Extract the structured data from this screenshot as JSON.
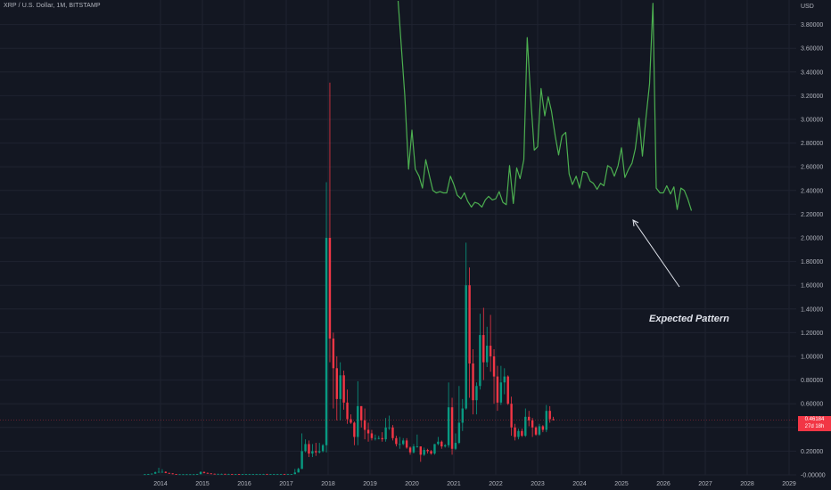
{
  "header": {
    "symbol_title": "XRP / U.S. Dollar, 1M, BITSTAMP"
  },
  "annotation": {
    "text": "Expected Pattern"
  },
  "price_badge": {
    "price": "0.46184",
    "countdown": "27d 18h"
  },
  "colors": {
    "background": "#131722",
    "up": "#089981",
    "down": "#f23645",
    "projection": "#4caf50",
    "grid": "#1f2330",
    "axis_text": "#b2b5be",
    "arrow": "#e0e3eb"
  },
  "chart_data": {
    "type": "candlestick",
    "interval": "1M",
    "currency_label": "USD",
    "x_range": [
      2013.0,
      2029.2
    ],
    "ylim": [
      -0.02,
      4.0
    ],
    "y_ticks": [
      "-0.00000",
      "0.20000",
      "0.40000",
      "0.60000",
      "0.80000",
      "1.00000",
      "1.20000",
      "1.40000",
      "1.60000",
      "1.80000",
      "2.00000",
      "2.20000",
      "2.40000",
      "2.60000",
      "2.80000",
      "3.00000",
      "3.20000",
      "3.40000",
      "3.60000",
      "3.80000"
    ],
    "y_tick_values": [
      0,
      0.2,
      0.4,
      0.6,
      0.8,
      1.0,
      1.2,
      1.4,
      1.6,
      1.8,
      2.0,
      2.2,
      2.4,
      2.6,
      2.8,
      3.0,
      3.2,
      3.4,
      3.6,
      3.8
    ],
    "x_ticks": [
      "2014",
      "2015",
      "2016",
      "2017",
      "2018",
      "2019",
      "2020",
      "2021",
      "2022",
      "2023",
      "2024",
      "2025",
      "2026",
      "2027",
      "2028",
      "2029"
    ],
    "x_tick_values": [
      2014,
      2015,
      2016,
      2017,
      2018,
      2019,
      2020,
      2021,
      2022,
      2023,
      2024,
      2025,
      2026,
      2027,
      2028,
      2029
    ],
    "grid": true,
    "candles": [
      {
        "t": "2013-08",
        "o": 0.005,
        "h": 0.007,
        "l": 0.004,
        "c": 0.005
      },
      {
        "t": "2013-09",
        "o": 0.005,
        "h": 0.008,
        "l": 0.004,
        "c": 0.006
      },
      {
        "t": "2013-10",
        "o": 0.006,
        "h": 0.012,
        "l": 0.005,
        "c": 0.01
      },
      {
        "t": "2013-11",
        "o": 0.01,
        "h": 0.028,
        "l": 0.008,
        "c": 0.022
      },
      {
        "t": "2013-12",
        "o": 0.022,
        "h": 0.06,
        "l": 0.018,
        "c": 0.025
      },
      {
        "t": "2014-01",
        "o": 0.025,
        "h": 0.048,
        "l": 0.02,
        "c": 0.025
      },
      {
        "t": "2014-02",
        "o": 0.025,
        "h": 0.03,
        "l": 0.014,
        "c": 0.016
      },
      {
        "t": "2014-03",
        "o": 0.016,
        "h": 0.018,
        "l": 0.01,
        "c": 0.012
      },
      {
        "t": "2014-04",
        "o": 0.012,
        "h": 0.014,
        "l": 0.005,
        "c": 0.006
      },
      {
        "t": "2014-05",
        "o": 0.006,
        "h": 0.007,
        "l": 0.004,
        "c": 0.005
      },
      {
        "t": "2014-06",
        "o": 0.005,
        "h": 0.006,
        "l": 0.004,
        "c": 0.005
      },
      {
        "t": "2014-07",
        "o": 0.005,
        "h": 0.006,
        "l": 0.004,
        "c": 0.005
      },
      {
        "t": "2014-08",
        "o": 0.005,
        "h": 0.006,
        "l": 0.004,
        "c": 0.005
      },
      {
        "t": "2014-09",
        "o": 0.005,
        "h": 0.006,
        "l": 0.004,
        "c": 0.005
      },
      {
        "t": "2014-10",
        "o": 0.005,
        "h": 0.006,
        "l": 0.004,
        "c": 0.005
      },
      {
        "t": "2014-11",
        "o": 0.005,
        "h": 0.008,
        "l": 0.004,
        "c": 0.006
      },
      {
        "t": "2014-12",
        "o": 0.006,
        "h": 0.03,
        "l": 0.005,
        "c": 0.024
      },
      {
        "t": "2015-01",
        "o": 0.024,
        "h": 0.028,
        "l": 0.012,
        "c": 0.016
      },
      {
        "t": "2015-02",
        "o": 0.016,
        "h": 0.02,
        "l": 0.01,
        "c": 0.012
      },
      {
        "t": "2015-03",
        "o": 0.012,
        "h": 0.014,
        "l": 0.008,
        "c": 0.009
      },
      {
        "t": "2015-04",
        "o": 0.009,
        "h": 0.01,
        "l": 0.006,
        "c": 0.008
      },
      {
        "t": "2015-05",
        "o": 0.008,
        "h": 0.01,
        "l": 0.006,
        "c": 0.008
      },
      {
        "t": "2015-06",
        "o": 0.008,
        "h": 0.01,
        "l": 0.006,
        "c": 0.008
      },
      {
        "t": "2015-07",
        "o": 0.008,
        "h": 0.009,
        "l": 0.006,
        "c": 0.007
      },
      {
        "t": "2015-08",
        "o": 0.007,
        "h": 0.009,
        "l": 0.006,
        "c": 0.007
      },
      {
        "t": "2015-09",
        "o": 0.007,
        "h": 0.008,
        "l": 0.005,
        "c": 0.006
      },
      {
        "t": "2015-10",
        "o": 0.006,
        "h": 0.007,
        "l": 0.005,
        "c": 0.006
      },
      {
        "t": "2015-11",
        "o": 0.006,
        "h": 0.007,
        "l": 0.004,
        "c": 0.005
      },
      {
        "t": "2015-12",
        "o": 0.005,
        "h": 0.007,
        "l": 0.004,
        "c": 0.006
      },
      {
        "t": "2016-01",
        "o": 0.006,
        "h": 0.007,
        "l": 0.005,
        "c": 0.006
      },
      {
        "t": "2016-02",
        "o": 0.006,
        "h": 0.008,
        "l": 0.005,
        "c": 0.007
      },
      {
        "t": "2016-03",
        "o": 0.007,
        "h": 0.008,
        "l": 0.006,
        "c": 0.007
      },
      {
        "t": "2016-04",
        "o": 0.007,
        "h": 0.008,
        "l": 0.006,
        "c": 0.007
      },
      {
        "t": "2016-05",
        "o": 0.007,
        "h": 0.008,
        "l": 0.006,
        "c": 0.007
      },
      {
        "t": "2016-06",
        "o": 0.007,
        "h": 0.008,
        "l": 0.006,
        "c": 0.007
      },
      {
        "t": "2016-07",
        "o": 0.007,
        "h": 0.008,
        "l": 0.006,
        "c": 0.006
      },
      {
        "t": "2016-08",
        "o": 0.006,
        "h": 0.007,
        "l": 0.005,
        "c": 0.006
      },
      {
        "t": "2016-09",
        "o": 0.006,
        "h": 0.008,
        "l": 0.005,
        "c": 0.007
      },
      {
        "t": "2016-10",
        "o": 0.007,
        "h": 0.008,
        "l": 0.006,
        "c": 0.007
      },
      {
        "t": "2016-11",
        "o": 0.007,
        "h": 0.008,
        "l": 0.006,
        "c": 0.007
      },
      {
        "t": "2016-12",
        "o": 0.007,
        "h": 0.008,
        "l": 0.006,
        "c": 0.006
      },
      {
        "t": "2017-01",
        "o": 0.006,
        "h": 0.008,
        "l": 0.006,
        "c": 0.006
      },
      {
        "t": "2017-02",
        "o": 0.006,
        "h": 0.007,
        "l": 0.005,
        "c": 0.006
      },
      {
        "t": "2017-03",
        "o": 0.006,
        "h": 0.05,
        "l": 0.006,
        "c": 0.02
      },
      {
        "t": "2017-04",
        "o": 0.02,
        "h": 0.06,
        "l": 0.02,
        "c": 0.05
      },
      {
        "t": "2017-05",
        "o": 0.05,
        "h": 0.35,
        "l": 0.05,
        "c": 0.2
      },
      {
        "t": "2017-06",
        "o": 0.2,
        "h": 0.3,
        "l": 0.19,
        "c": 0.26
      },
      {
        "t": "2017-07",
        "o": 0.26,
        "h": 0.29,
        "l": 0.15,
        "c": 0.18
      },
      {
        "t": "2017-08",
        "o": 0.18,
        "h": 0.26,
        "l": 0.15,
        "c": 0.2
      },
      {
        "t": "2017-09",
        "o": 0.2,
        "h": 0.27,
        "l": 0.16,
        "c": 0.19
      },
      {
        "t": "2017-10",
        "o": 0.19,
        "h": 0.27,
        "l": 0.18,
        "c": 0.2
      },
      {
        "t": "2017-11",
        "o": 0.2,
        "h": 0.26,
        "l": 0.19,
        "c": 0.25
      },
      {
        "t": "2017-12",
        "o": 0.25,
        "h": 2.47,
        "l": 0.19,
        "c": 2.0
      },
      {
        "t": "2018-01",
        "o": 2.0,
        "h": 3.31,
        "l": 0.95,
        "c": 1.15
      },
      {
        "t": "2018-02",
        "o": 1.15,
        "h": 1.2,
        "l": 0.56,
        "c": 0.9
      },
      {
        "t": "2018-03",
        "o": 0.9,
        "h": 1.0,
        "l": 0.46,
        "c": 0.64
      },
      {
        "t": "2018-04",
        "o": 0.64,
        "h": 0.95,
        "l": 0.46,
        "c": 0.84
      },
      {
        "t": "2018-05",
        "o": 0.84,
        "h": 0.88,
        "l": 0.55,
        "c": 0.61
      },
      {
        "t": "2018-06",
        "o": 0.61,
        "h": 0.72,
        "l": 0.43,
        "c": 0.47
      },
      {
        "t": "2018-07",
        "o": 0.47,
        "h": 0.51,
        "l": 0.43,
        "c": 0.44
      },
      {
        "t": "2018-08",
        "o": 0.44,
        "h": 0.45,
        "l": 0.25,
        "c": 0.32
      },
      {
        "t": "2018-09",
        "o": 0.32,
        "h": 0.79,
        "l": 0.25,
        "c": 0.58
      },
      {
        "t": "2018-10",
        "o": 0.58,
        "h": 0.58,
        "l": 0.4,
        "c": 0.46
      },
      {
        "t": "2018-11",
        "o": 0.46,
        "h": 0.56,
        "l": 0.3,
        "c": 0.38
      },
      {
        "t": "2018-12",
        "o": 0.38,
        "h": 0.44,
        "l": 0.28,
        "c": 0.35
      },
      {
        "t": "2019-01",
        "o": 0.35,
        "h": 0.38,
        "l": 0.29,
        "c": 0.31
      },
      {
        "t": "2019-02",
        "o": 0.31,
        "h": 0.34,
        "l": 0.29,
        "c": 0.31
      },
      {
        "t": "2019-03",
        "o": 0.31,
        "h": 0.33,
        "l": 0.3,
        "c": 0.31
      },
      {
        "t": "2019-04",
        "o": 0.31,
        "h": 0.36,
        "l": 0.28,
        "c": 0.3
      },
      {
        "t": "2019-05",
        "o": 0.3,
        "h": 0.48,
        "l": 0.28,
        "c": 0.4
      },
      {
        "t": "2019-06",
        "o": 0.4,
        "h": 0.5,
        "l": 0.38,
        "c": 0.4
      },
      {
        "t": "2019-07",
        "o": 0.4,
        "h": 0.42,
        "l": 0.29,
        "c": 0.31
      },
      {
        "t": "2019-08",
        "o": 0.31,
        "h": 0.33,
        "l": 0.24,
        "c": 0.26
      },
      {
        "t": "2019-09",
        "o": 0.26,
        "h": 0.32,
        "l": 0.22,
        "c": 0.26
      },
      {
        "t": "2019-10",
        "o": 0.26,
        "h": 0.31,
        "l": 0.25,
        "c": 0.29
      },
      {
        "t": "2019-11",
        "o": 0.29,
        "h": 0.31,
        "l": 0.22,
        "c": 0.23
      },
      {
        "t": "2019-12",
        "o": 0.23,
        "h": 0.24,
        "l": 0.17,
        "c": 0.19
      },
      {
        "t": "2020-01",
        "o": 0.19,
        "h": 0.26,
        "l": 0.18,
        "c": 0.24
      },
      {
        "t": "2020-02",
        "o": 0.24,
        "h": 0.34,
        "l": 0.23,
        "c": 0.24
      },
      {
        "t": "2020-03",
        "o": 0.24,
        "h": 0.24,
        "l": 0.11,
        "c": 0.17
      },
      {
        "t": "2020-04",
        "o": 0.17,
        "h": 0.23,
        "l": 0.16,
        "c": 0.21
      },
      {
        "t": "2020-05",
        "o": 0.21,
        "h": 0.22,
        "l": 0.18,
        "c": 0.2
      },
      {
        "t": "2020-06",
        "o": 0.2,
        "h": 0.21,
        "l": 0.17,
        "c": 0.18
      },
      {
        "t": "2020-07",
        "o": 0.18,
        "h": 0.26,
        "l": 0.17,
        "c": 0.26
      },
      {
        "t": "2020-08",
        "o": 0.26,
        "h": 0.32,
        "l": 0.25,
        "c": 0.28
      },
      {
        "t": "2020-09",
        "o": 0.28,
        "h": 0.29,
        "l": 0.22,
        "c": 0.24
      },
      {
        "t": "2020-10",
        "o": 0.24,
        "h": 0.26,
        "l": 0.23,
        "c": 0.25
      },
      {
        "t": "2020-11",
        "o": 0.25,
        "h": 0.78,
        "l": 0.23,
        "c": 0.57
      },
      {
        "t": "2020-12",
        "o": 0.57,
        "h": 0.65,
        "l": 0.17,
        "c": 0.22
      },
      {
        "t": "2021-01",
        "o": 0.22,
        "h": 0.35,
        "l": 0.21,
        "c": 0.27
      },
      {
        "t": "2021-02",
        "o": 0.27,
        "h": 0.75,
        "l": 0.26,
        "c": 0.44
      },
      {
        "t": "2021-03",
        "o": 0.44,
        "h": 0.64,
        "l": 0.37,
        "c": 0.56
      },
      {
        "t": "2021-04",
        "o": 0.56,
        "h": 1.96,
        "l": 0.55,
        "c": 1.6
      },
      {
        "t": "2021-05",
        "o": 1.6,
        "h": 1.75,
        "l": 0.65,
        "c": 0.94
      },
      {
        "t": "2021-06",
        "o": 0.94,
        "h": 1.06,
        "l": 0.51,
        "c": 0.63
      },
      {
        "t": "2021-07",
        "o": 0.63,
        "h": 0.78,
        "l": 0.51,
        "c": 0.75
      },
      {
        "t": "2021-08",
        "o": 0.75,
        "h": 1.36,
        "l": 0.72,
        "c": 1.18
      },
      {
        "t": "2021-09",
        "o": 1.18,
        "h": 1.41,
        "l": 0.8,
        "c": 0.95
      },
      {
        "t": "2021-10",
        "o": 0.95,
        "h": 1.25,
        "l": 0.91,
        "c": 1.09
      },
      {
        "t": "2021-11",
        "o": 1.09,
        "h": 1.35,
        "l": 0.87,
        "c": 1.0
      },
      {
        "t": "2021-12",
        "o": 1.0,
        "h": 1.06,
        "l": 0.6,
        "c": 0.83
      },
      {
        "t": "2022-01",
        "o": 0.83,
        "h": 0.92,
        "l": 0.54,
        "c": 0.61
      },
      {
        "t": "2022-02",
        "o": 0.61,
        "h": 0.92,
        "l": 0.59,
        "c": 0.78
      },
      {
        "t": "2022-03",
        "o": 0.78,
        "h": 0.9,
        "l": 0.68,
        "c": 0.83
      },
      {
        "t": "2022-04",
        "o": 0.83,
        "h": 0.84,
        "l": 0.59,
        "c": 0.6
      },
      {
        "t": "2022-05",
        "o": 0.6,
        "h": 0.66,
        "l": 0.33,
        "c": 0.4
      },
      {
        "t": "2022-06",
        "o": 0.4,
        "h": 0.43,
        "l": 0.29,
        "c": 0.32
      },
      {
        "t": "2022-07",
        "o": 0.32,
        "h": 0.39,
        "l": 0.3,
        "c": 0.37
      },
      {
        "t": "2022-08",
        "o": 0.37,
        "h": 0.39,
        "l": 0.32,
        "c": 0.33
      },
      {
        "t": "2022-09",
        "o": 0.33,
        "h": 0.56,
        "l": 0.32,
        "c": 0.49
      },
      {
        "t": "2022-10",
        "o": 0.49,
        "h": 0.54,
        "l": 0.41,
        "c": 0.46
      },
      {
        "t": "2022-11",
        "o": 0.46,
        "h": 0.48,
        "l": 0.32,
        "c": 0.4
      },
      {
        "t": "2022-12",
        "o": 0.4,
        "h": 0.41,
        "l": 0.33,
        "c": 0.34
      },
      {
        "t": "2023-01",
        "o": 0.34,
        "h": 0.43,
        "l": 0.33,
        "c": 0.41
      },
      {
        "t": "2023-02",
        "o": 0.41,
        "h": 0.42,
        "l": 0.36,
        "c": 0.38
      },
      {
        "t": "2023-03",
        "o": 0.38,
        "h": 0.59,
        "l": 0.36,
        "c": 0.54
      },
      {
        "t": "2023-04",
        "o": 0.54,
        "h": 0.58,
        "l": 0.44,
        "c": 0.47
      },
      {
        "t": "2023-05",
        "o": 0.47,
        "h": 0.49,
        "l": 0.46,
        "c": 0.462
      }
    ],
    "projection_line": {
      "x": [
        2019.67,
        2019.83,
        2019.92,
        2020.0,
        2020.08,
        2020.17,
        2020.25,
        2020.33,
        2020.42,
        2020.5,
        2020.58,
        2020.67,
        2020.75,
        2020.83,
        2020.92,
        2021.0,
        2021.08,
        2021.17,
        2021.25,
        2021.33,
        2021.42,
        2021.5,
        2021.58,
        2021.67,
        2021.75,
        2021.83,
        2021.92,
        2022.0,
        2022.08,
        2022.17,
        2022.25,
        2022.33,
        2022.42,
        2022.5,
        2022.58,
        2022.67,
        2022.75,
        2022.83,
        2022.92,
        2023.0,
        2023.08,
        2023.17,
        2023.25,
        2023.33,
        2023.42,
        2023.5,
        2023.58,
        2023.67,
        2023.75,
        2023.83,
        2023.92,
        2024.0,
        2024.08,
        2024.17,
        2024.25,
        2024.33,
        2024.42,
        2024.5,
        2024.58,
        2024.67,
        2024.75,
        2024.83,
        2024.92,
        2025.0,
        2025.08,
        2025.17,
        2025.25,
        2025.33,
        2025.42,
        2025.5,
        2025.58,
        2025.67,
        2025.75,
        2025.83,
        2025.92,
        2026.0,
        2026.08,
        2026.17,
        2026.25,
        2026.33,
        2026.42,
        2026.5,
        2026.58,
        2026.67
      ],
      "y": [
        4.0,
        3.2,
        2.58,
        2.91,
        2.58,
        2.52,
        2.42,
        2.66,
        2.52,
        2.4,
        2.38,
        2.39,
        2.38,
        2.38,
        2.52,
        2.45,
        2.36,
        2.33,
        2.38,
        2.31,
        2.26,
        2.3,
        2.29,
        2.26,
        2.32,
        2.35,
        2.32,
        2.33,
        2.39,
        2.3,
        2.28,
        2.61,
        2.29,
        2.59,
        2.5,
        2.66,
        3.69,
        3.21,
        2.74,
        2.77,
        3.26,
        3.03,
        3.19,
        3.07,
        2.86,
        2.7,
        2.86,
        2.89,
        2.54,
        2.45,
        2.52,
        2.42,
        2.56,
        2.55,
        2.48,
        2.46,
        2.41,
        2.46,
        2.44,
        2.61,
        2.59,
        2.52,
        2.61,
        2.76,
        2.51,
        2.58,
        2.63,
        2.75,
        3.01,
        2.69,
        3.0,
        3.3,
        3.98,
        2.42,
        2.38,
        2.38,
        2.44,
        2.37,
        2.43,
        2.24,
        2.42,
        2.4,
        2.33,
        2.23
      ]
    }
  }
}
